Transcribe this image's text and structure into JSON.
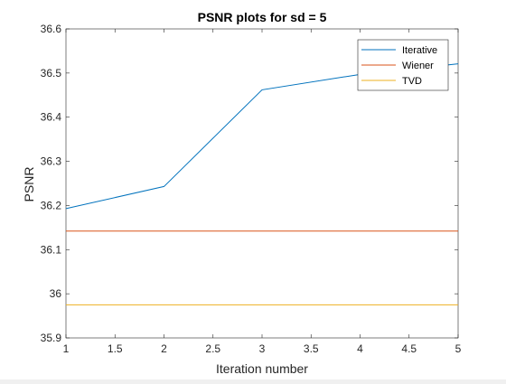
{
  "chart_data": {
    "type": "line",
    "title": "PSNR plots for sd = 5",
    "xlabel": "Iteration number",
    "ylabel": "PSNR",
    "xlim": [
      1,
      5
    ],
    "ylim": [
      35.9,
      36.6
    ],
    "xticks": [
      1,
      1.5,
      2,
      2.5,
      3,
      3.5,
      4,
      4.5,
      5
    ],
    "xtick_labels": [
      "1",
      "1.5",
      "2",
      "2.5",
      "3",
      "3.5",
      "4",
      "4.5",
      "5"
    ],
    "yticks": [
      35.9,
      36,
      36.1,
      36.2,
      36.3,
      36.4,
      36.5,
      36.6
    ],
    "ytick_labels": [
      "35.9",
      "36",
      "36.1",
      "36.2",
      "36.3",
      "36.4",
      "36.5",
      "36.6"
    ],
    "grid": false,
    "legend_position": "top-right",
    "x": [
      1,
      2,
      3,
      4,
      5
    ],
    "series": [
      {
        "name": "Iterative",
        "color": "#0072bd",
        "values": [
          36.193,
          36.243,
          36.462,
          36.497,
          36.521
        ]
      },
      {
        "name": "Wiener",
        "color": "#d95319",
        "values": [
          36.142,
          36.142,
          36.142,
          36.142,
          36.142
        ]
      },
      {
        "name": "TVD",
        "color": "#edb120",
        "values": [
          35.975,
          35.975,
          35.975,
          35.975,
          35.975
        ]
      }
    ]
  }
}
